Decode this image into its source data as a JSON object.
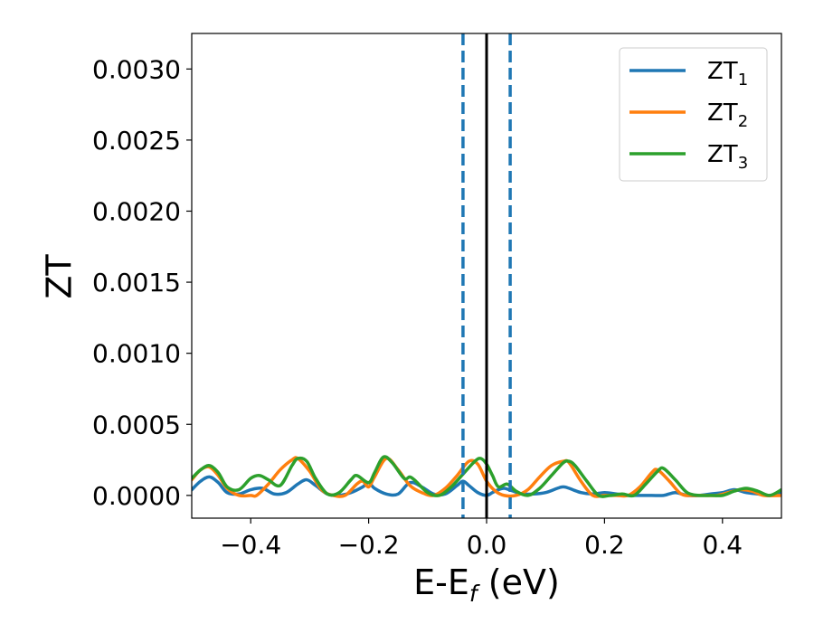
{
  "chart_data": {
    "type": "line",
    "xlabel": {
      "main": "E-E",
      "sub": "f",
      "unit": " (eV)"
    },
    "ylabel": "ZT",
    "xlim": [
      -0.5,
      0.5
    ],
    "ylim": [
      -0.00016,
      0.00325
    ],
    "x_ticks": [
      {
        "v": -0.4,
        "label": "−0.4"
      },
      {
        "v": -0.2,
        "label": "−0.2"
      },
      {
        "v": 0.0,
        "label": "0.0"
      },
      {
        "v": 0.2,
        "label": "0.2"
      },
      {
        "v": 0.4,
        "label": "0.4"
      }
    ],
    "y_ticks": [
      {
        "v": 0.0,
        "label": "0.0000"
      },
      {
        "v": 0.0005,
        "label": "0.0005"
      },
      {
        "v": 0.001,
        "label": "0.0010"
      },
      {
        "v": 0.0015,
        "label": "0.0015"
      },
      {
        "v": 0.002,
        "label": "0.0020"
      },
      {
        "v": 0.0025,
        "label": "0.0025"
      },
      {
        "v": 0.003,
        "label": "0.0030"
      }
    ],
    "grid": false,
    "legend_position": "top-right",
    "vlines": [
      {
        "x": 0.0,
        "style": "solid",
        "color": "#000000"
      },
      {
        "x": -0.04,
        "style": "dashed",
        "color": "#1f77b4"
      },
      {
        "x": 0.04,
        "style": "dashed",
        "color": "#1f77b4"
      }
    ],
    "series": [
      {
        "name": "ZT",
        "subscript": "1",
        "color": "#1f77b4",
        "x": [
          -0.5,
          -0.485,
          -0.47,
          -0.455,
          -0.44,
          -0.42,
          -0.4,
          -0.38,
          -0.36,
          -0.34,
          -0.32,
          -0.305,
          -0.29,
          -0.27,
          -0.25,
          -0.23,
          -0.21,
          -0.2,
          -0.19,
          -0.17,
          -0.15,
          -0.13,
          -0.11,
          -0.09,
          -0.07,
          -0.05,
          -0.04,
          -0.03,
          -0.015,
          0.0,
          0.01,
          0.02,
          0.03,
          0.045,
          0.06,
          0.08,
          0.1,
          0.12,
          0.13,
          0.14,
          0.16,
          0.18,
          0.2,
          0.22,
          0.24,
          0.26,
          0.28,
          0.3,
          0.32,
          0.34,
          0.36,
          0.38,
          0.4,
          0.42,
          0.44,
          0.46,
          0.48,
          0.5
        ],
        "y": [
          4e-05,
          0.0001,
          0.00013,
          9e-05,
          2e-05,
          1e-05,
          4e-05,
          5e-05,
          1e-05,
          2e-05,
          8e-05,
          0.00011,
          7e-05,
          1e-05,
          0.0,
          2e-05,
          6e-05,
          9e-05,
          5e-05,
          1e-05,
          1e-05,
          9e-05,
          6e-05,
          1e-05,
          1e-05,
          7e-05,
          0.0001,
          7e-05,
          2e-05,
          0.0,
          2e-05,
          4e-05,
          5e-05,
          3e-05,
          1e-05,
          1e-05,
          2e-05,
          5e-05,
          6e-05,
          5e-05,
          2e-05,
          1e-05,
          2e-05,
          1e-05,
          0.0,
          0.0,
          0.0,
          0.0,
          2e-05,
          0.0,
          0.0,
          1e-05,
          2e-05,
          4e-05,
          2e-05,
          1e-05,
          0.0,
          2e-05
        ]
      },
      {
        "name": "ZT",
        "subscript": "2",
        "color": "#ff7f0e",
        "x": [
          -0.5,
          -0.485,
          -0.47,
          -0.455,
          -0.44,
          -0.42,
          -0.4,
          -0.39,
          -0.37,
          -0.35,
          -0.33,
          -0.32,
          -0.3,
          -0.28,
          -0.26,
          -0.24,
          -0.22,
          -0.21,
          -0.2,
          -0.19,
          -0.17,
          -0.15,
          -0.13,
          -0.11,
          -0.09,
          -0.07,
          -0.05,
          -0.03,
          -0.015,
          0.0,
          0.015,
          0.03,
          0.05,
          0.07,
          0.09,
          0.11,
          0.13,
          0.14,
          0.16,
          0.18,
          0.2,
          0.22,
          0.24,
          0.26,
          0.28,
          0.29,
          0.31,
          0.33,
          0.35,
          0.37,
          0.39,
          0.41,
          0.43,
          0.45,
          0.47,
          0.5
        ],
        "y": [
          0.00011,
          0.00018,
          0.0002,
          0.00014,
          5e-05,
          0.0,
          0.0,
          0.0,
          8e-05,
          0.00018,
          0.00025,
          0.00026,
          0.00017,
          4e-05,
          0.0,
          0.0,
          8e-05,
          0.0001,
          6e-05,
          0.00013,
          0.00026,
          0.00018,
          7e-05,
          2e-05,
          0.0,
          5e-05,
          0.00014,
          0.00024,
          0.00022,
          0.0001,
          3e-05,
          0.0,
          0.0,
          4e-05,
          0.00013,
          0.00021,
          0.00024,
          0.00023,
          0.0001,
          0.0,
          0.0,
          0.0,
          0.0,
          6e-05,
          0.00016,
          0.00018,
          0.0001,
          1e-05,
          0.0,
          0.0,
          0.0,
          2e-05,
          4e-05,
          3e-05,
          0.0,
          0.0
        ]
      },
      {
        "name": "ZT",
        "subscript": "3",
        "color": "#2ca02c",
        "x": [
          -0.5,
          -0.485,
          -0.47,
          -0.455,
          -0.44,
          -0.42,
          -0.4,
          -0.385,
          -0.37,
          -0.35,
          -0.33,
          -0.32,
          -0.305,
          -0.29,
          -0.27,
          -0.25,
          -0.23,
          -0.22,
          -0.2,
          -0.19,
          -0.175,
          -0.16,
          -0.14,
          -0.13,
          -0.12,
          -0.1,
          -0.08,
          -0.06,
          -0.04,
          -0.02,
          -0.01,
          0.0,
          0.01,
          0.02,
          0.035,
          0.05,
          0.07,
          0.09,
          0.11,
          0.13,
          0.14,
          0.15,
          0.17,
          0.19,
          0.21,
          0.23,
          0.25,
          0.27,
          0.29,
          0.3,
          0.32,
          0.34,
          0.36,
          0.38,
          0.4,
          0.42,
          0.44,
          0.46,
          0.48,
          0.5
        ],
        "y": [
          0.00012,
          0.00018,
          0.00021,
          0.00016,
          6e-05,
          4e-05,
          0.00012,
          0.00014,
          0.00011,
          7e-05,
          0.00021,
          0.00026,
          0.00024,
          0.00012,
          1e-05,
          2e-05,
          0.00011,
          0.00014,
          9e-05,
          0.00016,
          0.00027,
          0.00023,
          0.00012,
          0.00013,
          0.0001,
          2e-05,
          0.0,
          6e-05,
          0.00015,
          0.00024,
          0.00026,
          0.00022,
          0.00014,
          6e-05,
          8e-05,
          3e-05,
          0.0,
          5e-05,
          0.00014,
          0.00023,
          0.00024,
          0.00021,
          0.0001,
          0.0,
          0.0,
          1e-05,
          0.0,
          8e-05,
          0.00017,
          0.00019,
          0.00011,
          2e-05,
          0.0,
          0.0,
          0.0,
          3e-05,
          5e-05,
          3e-05,
          0.0,
          4e-05
        ]
      }
    ]
  }
}
